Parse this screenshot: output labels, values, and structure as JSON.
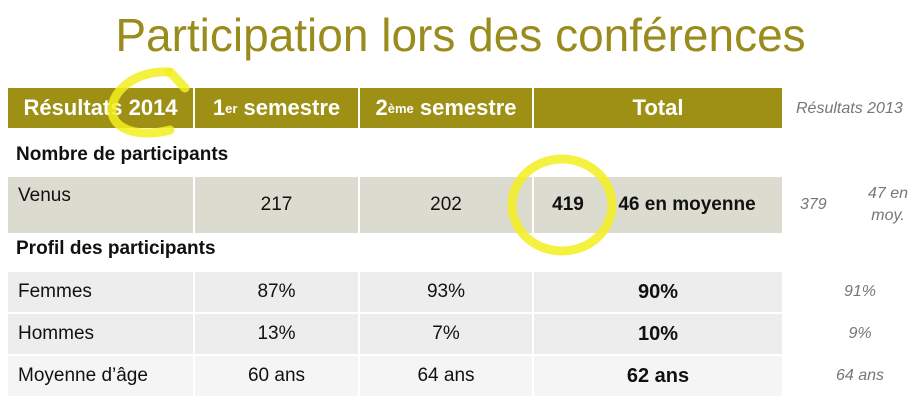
{
  "title": "Participation lors des conférences",
  "header": [
    {
      "text": "Résultats 2014"
    },
    {
      "base": "1",
      "sup": "er",
      "rest": " semestre"
    },
    {
      "base": "2",
      "sup": "ème",
      "rest": " semestre"
    },
    {
      "text": "Total"
    }
  ],
  "header_side": "Résultats 2013",
  "sections": [
    {
      "title": "Nombre de participants",
      "rows": [
        {
          "label": "Venus",
          "s1": "217",
          "s2": "202",
          "total": "419",
          "total_note": "46 en moyenne",
          "prev": "379",
          "prev_note": "47 en moy."
        }
      ]
    },
    {
      "title": "Profil des participants",
      "rows": [
        {
          "label": "Femmes",
          "s1": "87%",
          "s2": "93%",
          "total": "90%",
          "prev": "91%"
        },
        {
          "label": "Hommes",
          "s1": "13%",
          "s2": "7%",
          "total": "10%",
          "prev": "9%"
        },
        {
          "label": "Moyenne d’âge",
          "s1": "60 ans",
          "s2": "64 ans",
          "total": "62 ans",
          "prev": "64 ans"
        }
      ]
    }
  ]
}
